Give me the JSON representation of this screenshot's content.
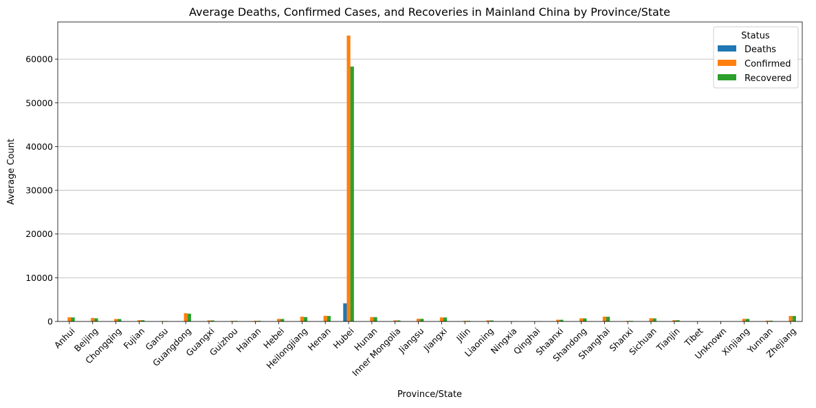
{
  "chart_data": {
    "type": "bar",
    "title": "Average Deaths, Confirmed Cases, and Recoveries in Mainland China by Province/State",
    "xlabel": "Province/State",
    "ylabel": "Average Count",
    "ylim": [
      0,
      68500
    ],
    "yticks": [
      0,
      10000,
      20000,
      30000,
      40000,
      50000,
      60000
    ],
    "grid": "y",
    "legend": {
      "title": "Status",
      "placement": "top-right"
    },
    "categories": [
      "Anhui",
      "Beijing",
      "Chongqing",
      "Fujian",
      "Gansu",
      "Guangdong",
      "Guangxi",
      "Guizhou",
      "Hainan",
      "Hebei",
      "Heilongjiang",
      "Henan",
      "Hubei",
      "Hunan",
      "Inner Mongolia",
      "Jiangsu",
      "Jiangxi",
      "Jilin",
      "Liaoning",
      "Ningxia",
      "Qinghai",
      "Shaanxi",
      "Shandong",
      "Shanghai",
      "Shanxi",
      "Sichuan",
      "Tianjin",
      "Tibet",
      "Unknown",
      "Xinjiang",
      "Yunnan",
      "Zhejiang"
    ],
    "series": [
      {
        "name": "Deaths",
        "color": "#1f77b4",
        "values": [
          6,
          8,
          6,
          1,
          2,
          8,
          2,
          2,
          6,
          6,
          13,
          22,
          4150,
          4,
          1,
          1,
          1,
          1,
          2,
          0,
          0,
          3,
          7,
          7,
          0,
          3,
          3,
          0,
          0,
          3,
          2,
          1
        ]
      },
      {
        "name": "Confirmed",
        "color": "#ff7f0e",
        "values": [
          950,
          800,
          560,
          290,
          100,
          1900,
          240,
          140,
          160,
          590,
          1100,
          1300,
          65400,
          1000,
          250,
          620,
          920,
          150,
          250,
          70,
          15,
          400,
          720,
          1100,
          130,
          750,
          300,
          1,
          10,
          600,
          180,
          1260
        ]
      },
      {
        "name": "Recovered",
        "color": "#2ca02c",
        "values": [
          920,
          720,
          560,
          280,
          90,
          1780,
          230,
          130,
          150,
          570,
          1000,
          1250,
          58300,
          990,
          230,
          600,
          910,
          140,
          230,
          70,
          15,
          390,
          710,
          1080,
          130,
          700,
          280,
          1,
          0,
          590,
          170,
          1250
        ]
      }
    ]
  }
}
